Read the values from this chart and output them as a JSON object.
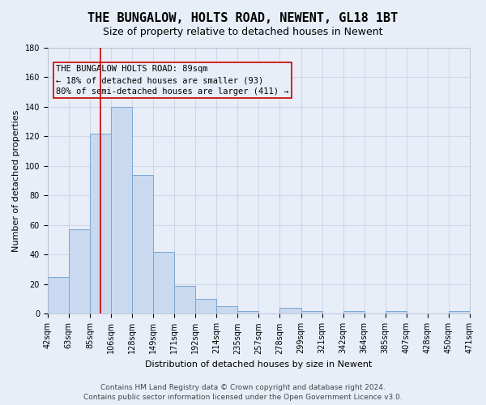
{
  "title": "THE BUNGALOW, HOLTS ROAD, NEWENT, GL18 1BT",
  "subtitle": "Size of property relative to detached houses in Newent",
  "xlabel": "Distribution of detached houses by size in Newent",
  "ylabel": "Number of detached properties",
  "bin_labels": [
    "42sqm",
    "63sqm",
    "85sqm",
    "106sqm",
    "128sqm",
    "149sqm",
    "171sqm",
    "192sqm",
    "214sqm",
    "235sqm",
    "257sqm",
    "278sqm",
    "299sqm",
    "321sqm",
    "342sqm",
    "364sqm",
    "385sqm",
    "407sqm",
    "428sqm",
    "450sqm",
    "471sqm"
  ],
  "bar_values": [
    25,
    57,
    122,
    140,
    94,
    42,
    19,
    10,
    5,
    2,
    0,
    4,
    2,
    0,
    2,
    0,
    2,
    0,
    0,
    2
  ],
  "bar_color": "#c9d9f0",
  "bar_edge_color": "#7ba7d4",
  "grid_color": "#d0d8e8",
  "background_color": "#e8eef8",
  "vline_x": 2.5,
  "vline_color": "#cc0000",
  "ylim": [
    0,
    180
  ],
  "yticks": [
    0,
    20,
    40,
    60,
    80,
    100,
    120,
    140,
    160,
    180
  ],
  "annotation_title": "THE BUNGALOW HOLTS ROAD: 89sqm",
  "annotation_line1": "← 18% of detached houses are smaller (93)",
  "annotation_line2": "80% of semi-detached houses are larger (411) →",
  "footer": "Contains HM Land Registry data © Crown copyright and database right 2024.\nContains public sector information licensed under the Open Government Licence v3.0.",
  "title_fontsize": 11,
  "subtitle_fontsize": 9,
  "axis_label_fontsize": 8,
  "tick_fontsize": 7,
  "annotation_fontsize": 7.5,
  "footer_fontsize": 6.5
}
